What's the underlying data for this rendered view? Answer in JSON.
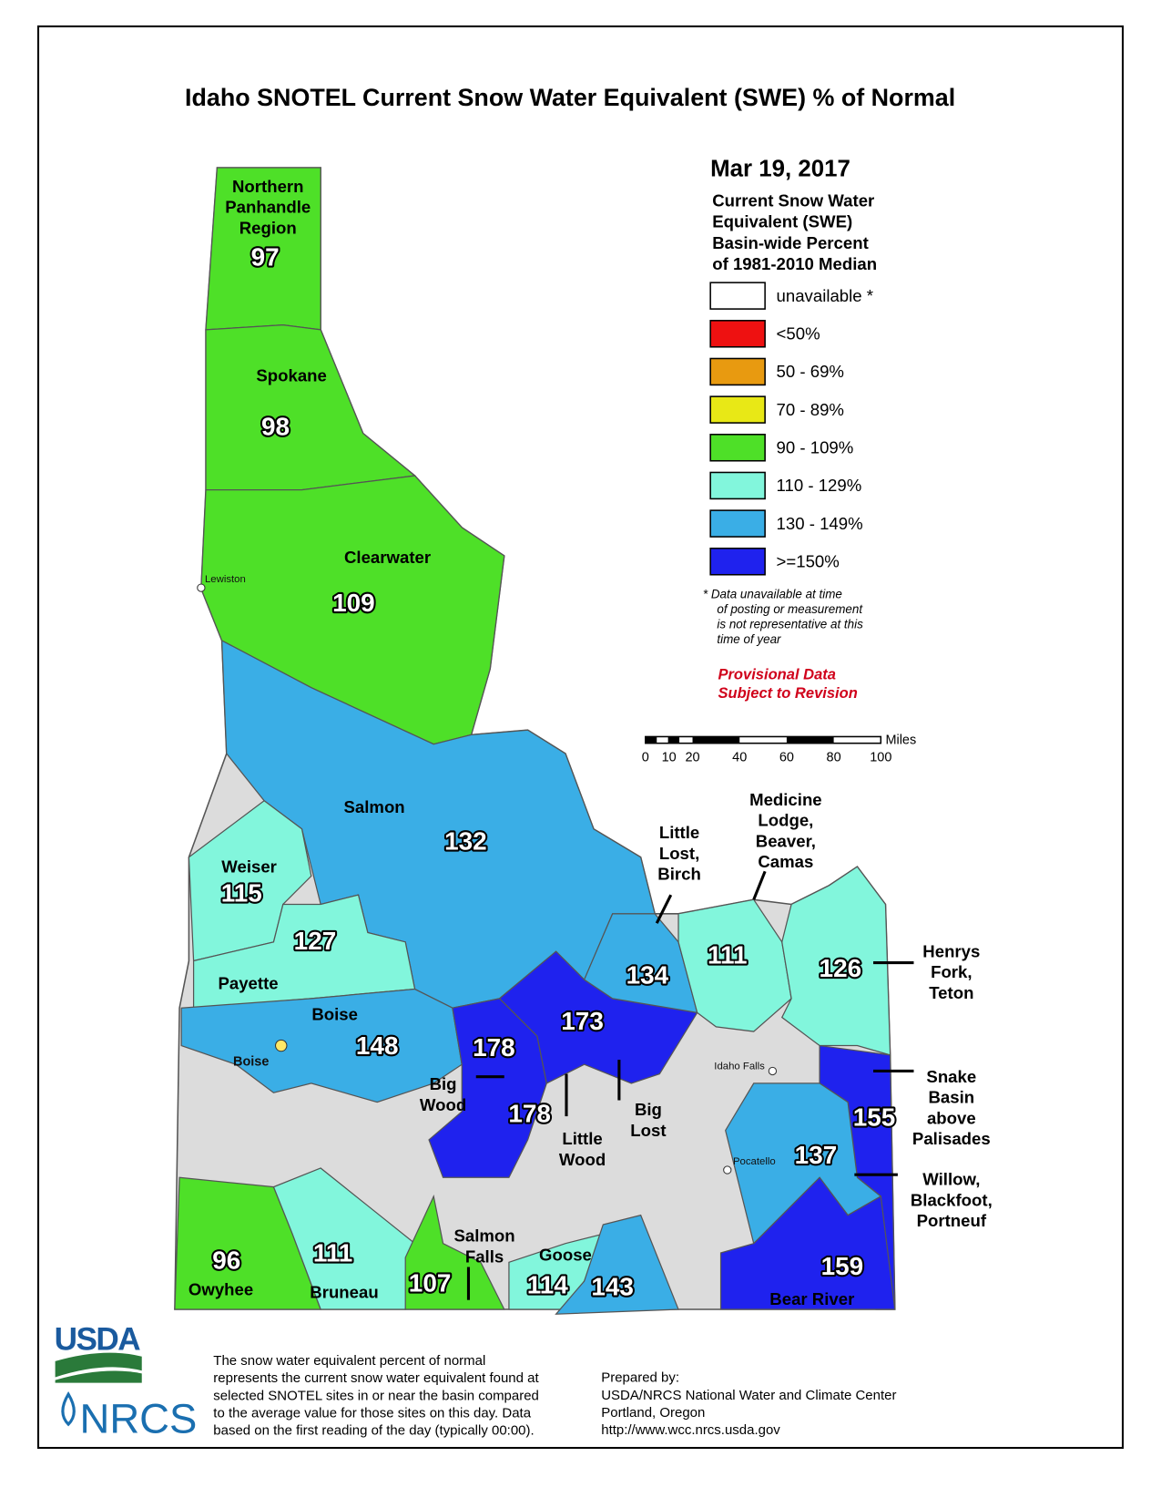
{
  "title": "Idaho SNOTEL Current Snow Water Equivalent (SWE) % of Normal",
  "legend": {
    "date": "Mar 19, 2017",
    "heading": [
      "Current Snow Water",
      "Equivalent (SWE)",
      "Basin-wide Percent",
      "of 1981-2010 Median"
    ],
    "items": [
      {
        "label": "unavailable *",
        "color": "#ffffff"
      },
      {
        "label": "<50%",
        "color": "#ee1111"
      },
      {
        "label": "50 - 69%",
        "color": "#e89a10"
      },
      {
        "label": "70 - 89%",
        "color": "#e8e816"
      },
      {
        "label": "90 - 109%",
        "color": "#4ee028"
      },
      {
        "label": "110 - 129%",
        "color": "#82f6dc"
      },
      {
        "label": "130 - 149%",
        "color": "#3aaee6"
      },
      {
        "label": ">=150%",
        "color": "#1f22ee"
      }
    ],
    "footnote": [
      "*  Data unavailable at time",
      "of posting or measurement",
      "is not representative at this",
      "time of year"
    ],
    "provisional": [
      "Provisional Data",
      "Subject to Revision"
    ]
  },
  "scale_bar": {
    "ticks": [
      "0",
      "10",
      "20",
      "40",
      "60",
      "80",
      "100"
    ],
    "unit": "Miles"
  },
  "basins": [
    {
      "name": [
        "Northern",
        "Panhandle",
        "Region"
      ],
      "value": 97
    },
    {
      "name": [
        "Spokane"
      ],
      "value": 98
    },
    {
      "name": [
        "Clearwater"
      ],
      "value": 109
    },
    {
      "name": [
        "Salmon"
      ],
      "value": 132
    },
    {
      "name": [
        "Weiser"
      ],
      "value": 115
    },
    {
      "name": [
        "Payette"
      ],
      "value": 127
    },
    {
      "name": [
        "Boise"
      ],
      "value": 148
    },
    {
      "name": [
        "Big",
        "Wood"
      ],
      "value": 178
    },
    {
      "name": [
        "Little",
        "Wood"
      ],
      "value": 178
    },
    {
      "name": [
        "Big",
        "Lost"
      ],
      "value": 173
    },
    {
      "name": [
        "Little",
        "Lost,",
        "Birch"
      ],
      "value": 134
    },
    {
      "name": [
        "Medicine",
        "Lodge,",
        "Beaver,",
        "Camas"
      ],
      "value": 111
    },
    {
      "name": [
        "Henrys",
        "Fork,",
        "Teton"
      ],
      "value": 126
    },
    {
      "name": [
        "Snake",
        "Basin",
        "above",
        "Palisades"
      ],
      "value": 155
    },
    {
      "name": [
        "Willow,",
        "Blackfoot,",
        "Portneuf"
      ],
      "value": 137
    },
    {
      "name": [
        "Bear River"
      ],
      "value": 159
    },
    {
      "name": [
        "Owyhee"
      ],
      "value": 96
    },
    {
      "name": [
        "Bruneau"
      ],
      "value": 111
    },
    {
      "name": [
        "Salmon",
        "Falls"
      ],
      "value": 107
    },
    {
      "name": [
        "Goose"
      ],
      "value": 114
    },
    {
      "value": 143
    }
  ],
  "cities": [
    "Lewiston",
    "Boise",
    "Idaho Falls",
    "Pocatello"
  ],
  "logo": {
    "usda": "USDA",
    "nrcs": "NRCS"
  },
  "footer": {
    "description": [
      "The snow water equivalent percent of normal",
      "represents the current snow water equivalent found at",
      "selected SNOTEL sites in or near the basin compared",
      "to the average value for those sites on this day. Data",
      "based on the first reading of the day (typically 00:00)."
    ],
    "prepared": [
      "Prepared by:",
      "USDA/NRCS National Water and Climate Center",
      "Portland, Oregon",
      "http://www.wcc.nrcs.usda.gov"
    ]
  }
}
